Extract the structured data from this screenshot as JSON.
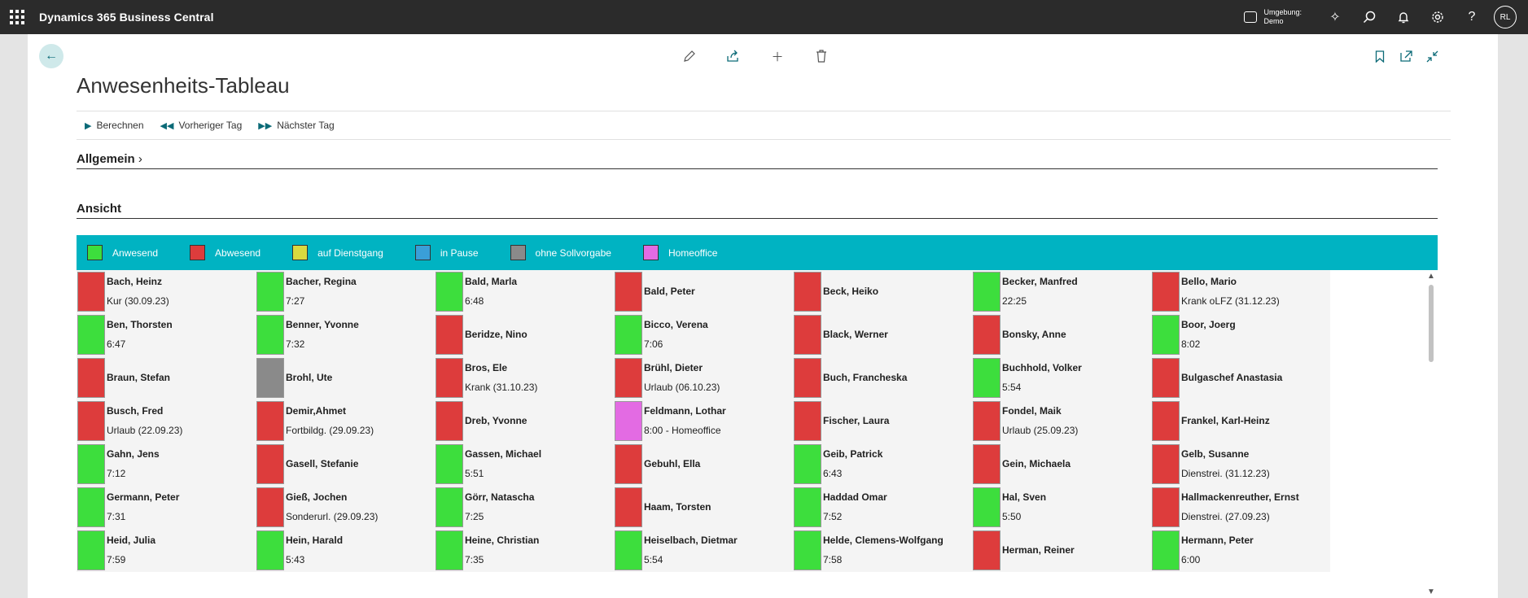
{
  "app": {
    "title": "Dynamics 365 Business Central"
  },
  "topbar": {
    "env_label": "Umgebung:",
    "env_value": "Demo",
    "avatar": "RL",
    "icons": [
      "copilot-icon",
      "search-icon",
      "bell-icon",
      "gear-icon",
      "help-icon"
    ]
  },
  "page": {
    "title": "Anwesenheits-Tableau",
    "actions": [
      {
        "label": "Berechnen",
        "icon": "play-icon"
      },
      {
        "label": "Vorheriger Tag",
        "icon": "previous-icon"
      },
      {
        "label": "Nächster Tag",
        "icon": "next-icon"
      }
    ],
    "section_general": "Allgemein",
    "section_view": "Ansicht"
  },
  "legend": [
    {
      "label": "Anwesend",
      "color": "#3dde3d"
    },
    {
      "label": "Abwesend",
      "color": "#dd3c3c"
    },
    {
      "label": "auf Dienstgang",
      "color": "#d9d93f"
    },
    {
      "label": "in Pause",
      "color": "#3a9fd8"
    },
    {
      "label": "ohne Sollvorgabe",
      "color": "#8a8a8a"
    },
    {
      "label": "Homeoffice",
      "color": "#e36be3"
    }
  ],
  "employees": [
    {
      "name": "Bach, Heinz",
      "sub": "Kur (30.09.23)",
      "status": "absent"
    },
    {
      "name": "Bacher, Regina",
      "sub": "7:27",
      "status": "present"
    },
    {
      "name": "Bald, Marla",
      "sub": "6:48",
      "status": "present"
    },
    {
      "name": "Bald, Peter",
      "sub": "",
      "status": "absent"
    },
    {
      "name": "Beck, Heiko",
      "sub": "",
      "status": "absent"
    },
    {
      "name": "Becker, Manfred",
      "sub": "22:25",
      "status": "present"
    },
    {
      "name": "Bello, Mario",
      "sub": "Krank oLFZ (31.12.23)",
      "status": "absent"
    },
    {
      "name": "Ben, Thorsten",
      "sub": "6:47",
      "status": "present"
    },
    {
      "name": "Benner, Yvonne",
      "sub": "7:32",
      "status": "present"
    },
    {
      "name": "Beridze, Nino",
      "sub": "",
      "status": "absent"
    },
    {
      "name": "Bicco, Verena",
      "sub": "7:06",
      "status": "present"
    },
    {
      "name": "Black, Werner",
      "sub": "",
      "status": "absent"
    },
    {
      "name": "Bonsky, Anne",
      "sub": "",
      "status": "absent"
    },
    {
      "name": "Boor, Joerg",
      "sub": "8:02",
      "status": "present"
    },
    {
      "name": "Braun, Stefan",
      "sub": "",
      "status": "absent"
    },
    {
      "name": "Brohl, Ute",
      "sub": "",
      "status": "none"
    },
    {
      "name": "Bros, Ele",
      "sub": "Krank (31.10.23)",
      "status": "absent"
    },
    {
      "name": "Brühl, Dieter",
      "sub": "Urlaub (06.10.23)",
      "status": "absent"
    },
    {
      "name": "Buch, Francheska",
      "sub": "",
      "status": "absent"
    },
    {
      "name": "Buchhold, Volker",
      "sub": "5:54",
      "status": "present"
    },
    {
      "name": "Bulgaschef Anastasia",
      "sub": "",
      "status": "absent"
    },
    {
      "name": "Busch, Fred",
      "sub": "Urlaub (22.09.23)",
      "status": "absent"
    },
    {
      "name": "Demir,Ahmet",
      "sub": "Fortbildg. (29.09.23)",
      "status": "absent"
    },
    {
      "name": "Dreb, Yvonne",
      "sub": "",
      "status": "absent"
    },
    {
      "name": "Feldmann, Lothar",
      "sub": "8:00 - Homeoffice",
      "status": "homeoffice"
    },
    {
      "name": "Fischer, Laura",
      "sub": "",
      "status": "absent"
    },
    {
      "name": "Fondel, Maik",
      "sub": "Urlaub (25.09.23)",
      "status": "absent"
    },
    {
      "name": "Frankel, Karl-Heinz",
      "sub": "",
      "status": "absent"
    },
    {
      "name": "Gahn, Jens",
      "sub": "7:12",
      "status": "present"
    },
    {
      "name": "Gasell, Stefanie",
      "sub": "",
      "status": "absent"
    },
    {
      "name": "Gassen, Michael",
      "sub": "5:51",
      "status": "present"
    },
    {
      "name": "Gebuhl, Ella",
      "sub": "",
      "status": "absent"
    },
    {
      "name": "Geib, Patrick",
      "sub": "6:43",
      "status": "present"
    },
    {
      "name": "Gein, Michaela",
      "sub": "",
      "status": "absent"
    },
    {
      "name": "Gelb, Susanne",
      "sub": "Dienstrei. (31.12.23)",
      "status": "absent"
    },
    {
      "name": "Germann, Peter",
      "sub": "7:31",
      "status": "present"
    },
    {
      "name": "Gieß, Jochen",
      "sub": "Sonderurl. (29.09.23)",
      "status": "absent"
    },
    {
      "name": "Görr, Natascha",
      "sub": "7:25",
      "status": "present"
    },
    {
      "name": "Haam, Torsten",
      "sub": "",
      "status": "absent"
    },
    {
      "name": "Haddad Omar",
      "sub": "7:52",
      "status": "present"
    },
    {
      "name": "Hal, Sven",
      "sub": "5:50",
      "status": "present"
    },
    {
      "name": "Hallmackenreuther, Ernst",
      "sub": "Dienstrei. (27.09.23)",
      "status": "absent"
    },
    {
      "name": "Heid, Julia",
      "sub": "7:59",
      "status": "present"
    },
    {
      "name": "Hein, Harald",
      "sub": "5:43",
      "status": "present"
    },
    {
      "name": "Heine, Christian",
      "sub": "7:35",
      "status": "present"
    },
    {
      "name": "Heiselbach, Dietmar",
      "sub": "5:54",
      "status": "present"
    },
    {
      "name": "Helde, Clemens-Wolfgang",
      "sub": "7:58",
      "status": "present"
    },
    {
      "name": "Herman, Reiner",
      "sub": "",
      "status": "absent"
    },
    {
      "name": "Hermann, Peter",
      "sub": "6:00",
      "status": "present"
    }
  ],
  "status_colors": {
    "present": "#3dde3d",
    "absent": "#dd3c3c",
    "none": "#8a8a8a",
    "homeoffice": "#e36be3"
  }
}
